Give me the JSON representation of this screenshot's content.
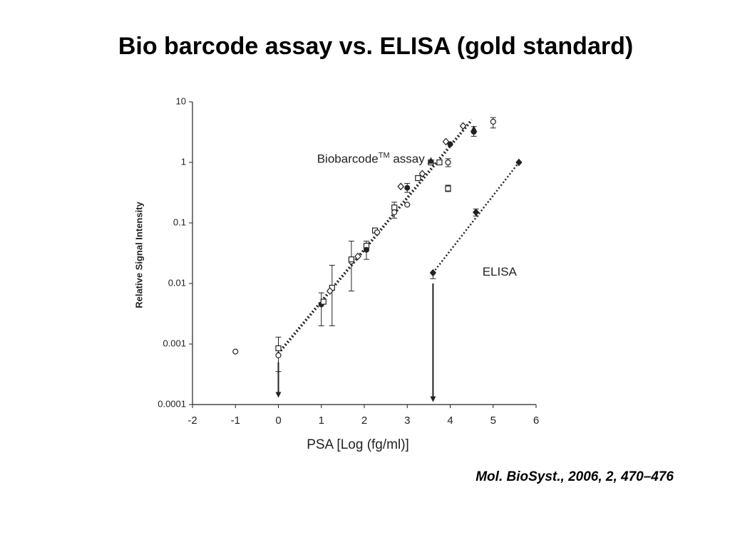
{
  "chart_data": {
    "type": "scatter",
    "title": "Bio barcode assay vs. ELISA (gold standard)",
    "xlabel": "PSA [Log (fg/ml)]",
    "ylabel": "Relative Signal Intensity",
    "citation": "Mol. BioSyst., 2006, 2, 470–476",
    "xlim": [
      -2,
      6
    ],
    "xticks": [
      -2,
      -1,
      0,
      1,
      2,
      3,
      4,
      5,
      6
    ],
    "ylim": [
      0.0001,
      10
    ],
    "yticks": [
      0.0001,
      0.001,
      0.01,
      0.1,
      1,
      10
    ],
    "ylog": true,
    "color": "#222222",
    "series": [
      {
        "name": "Biobarcode",
        "name_sup": "TM",
        "name_rest": " assay",
        "label_at": [
          0.9,
          1.1
        ],
        "x": [
          -1,
          0,
          0,
          1,
          1.05,
          1.25,
          1.2,
          1.7,
          1.7,
          1.85,
          2.05,
          2.05,
          2.25,
          2.3,
          2.7,
          2.7,
          2.85,
          3.0,
          3.0,
          3.25,
          3.35,
          3.55,
          3.55,
          3.75,
          3.95,
          3.95,
          4.0,
          3.9,
          4.3,
          4.55,
          4.55,
          5.0
        ],
        "values": [
          0.00075,
          0.00085,
          0.00065,
          0.0045,
          0.005,
          0.0085,
          0.0075,
          0.023,
          0.025,
          0.028,
          0.042,
          0.036,
          0.075,
          0.07,
          0.18,
          0.15,
          0.4,
          0.38,
          0.2,
          0.55,
          0.65,
          1.0,
          1.05,
          1.0,
          1.0,
          0.37,
          2.0,
          2.2,
          4.0,
          3.2,
          3.5,
          4.7
        ],
        "markers": [
          "circle",
          "square",
          "circle",
          "filled-circle",
          "square",
          "square",
          "diamond",
          "circle",
          "square",
          "diamond",
          "square",
          "filled-circle",
          "square",
          "circle",
          "square",
          "circle",
          "diamond",
          "filled-circle",
          "circle",
          "square",
          "diamond",
          "square",
          "triangle",
          "square",
          "circle",
          "square",
          "filled-circle",
          "diamond",
          "diamond",
          "filled-circle",
          "triangle",
          "circle"
        ],
        "err_low": [
          null,
          0.00035,
          null,
          0.002,
          null,
          0.002,
          null,
          0.0075,
          null,
          null,
          0.025,
          null,
          null,
          null,
          0.12,
          null,
          null,
          0.32,
          null,
          null,
          null,
          null,
          null,
          null,
          0.85,
          0.33,
          null,
          null,
          null,
          2.7,
          null,
          3.7
        ],
        "err_high": [
          null,
          0.0013,
          null,
          0.007,
          null,
          0.02,
          null,
          0.05,
          null,
          null,
          0.05,
          null,
          null,
          null,
          0.22,
          null,
          null,
          0.45,
          null,
          null,
          null,
          null,
          null,
          null,
          1.15,
          0.42,
          null,
          null,
          null,
          3.9,
          null,
          5.5
        ]
      },
      {
        "name": "ELISA",
        "label_at": [
          4.75,
          0.015
        ],
        "x": [
          3.6,
          4.6,
          5.6
        ],
        "values": [
          0.015,
          0.15,
          1.0
        ],
        "markers": [
          "filled-diamond",
          "filled-diamond",
          "filled-diamond"
        ],
        "err_low": [
          0.012,
          0.13,
          null
        ],
        "err_high": [
          null,
          0.17,
          null
        ]
      }
    ],
    "fit_lines": [
      {
        "x": [
          0,
          4.5
        ],
        "values": [
          0.0007,
          5
        ],
        "width": 4
      },
      {
        "x": [
          3.6,
          5.6
        ],
        "values": [
          0.015,
          1.0
        ],
        "width": 2.5
      }
    ],
    "arrows": [
      {
        "x": 0,
        "from": 0.0005,
        "to": 0.00013
      },
      {
        "x": 3.6,
        "from": 0.01,
        "to": 0.00011
      }
    ]
  }
}
